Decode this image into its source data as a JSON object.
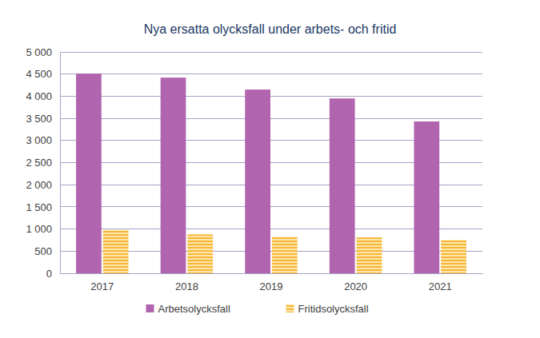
{
  "chart_data": {
    "type": "bar",
    "title": "Nya ersatta olycksfall under arbets- och fritid",
    "categories": [
      "2017",
      "2018",
      "2019",
      "2020",
      "2021"
    ],
    "series": [
      {
        "name": "Arbetsolycksfall",
        "color": "#b065ae",
        "values": [
          4510,
          4420,
          4150,
          3950,
          3430
        ]
      },
      {
        "name": "Fritidsolycksfall",
        "color": "#f7b733",
        "values": [
          980,
          880,
          820,
          810,
          750
        ]
      }
    ],
    "ylim": [
      0,
      5000
    ],
    "yticks": [
      0,
      500,
      {
        "value": 1000,
        "label": "1 000"
      },
      {
        "value": 1500,
        "label": "1 500"
      },
      {
        "value": 2000,
        "label": "2 000"
      },
      {
        "value": 2500,
        "label": "2 500"
      },
      {
        "value": 3000,
        "label": "3 000"
      },
      {
        "value": 3500,
        "label": "3 500"
      },
      {
        "value": 4000,
        "label": "4 000"
      },
      {
        "value": 4500,
        "label": "4 500"
      },
      {
        "value": 5000,
        "label": "5 000"
      }
    ],
    "grid": true,
    "legend": "bottom"
  }
}
